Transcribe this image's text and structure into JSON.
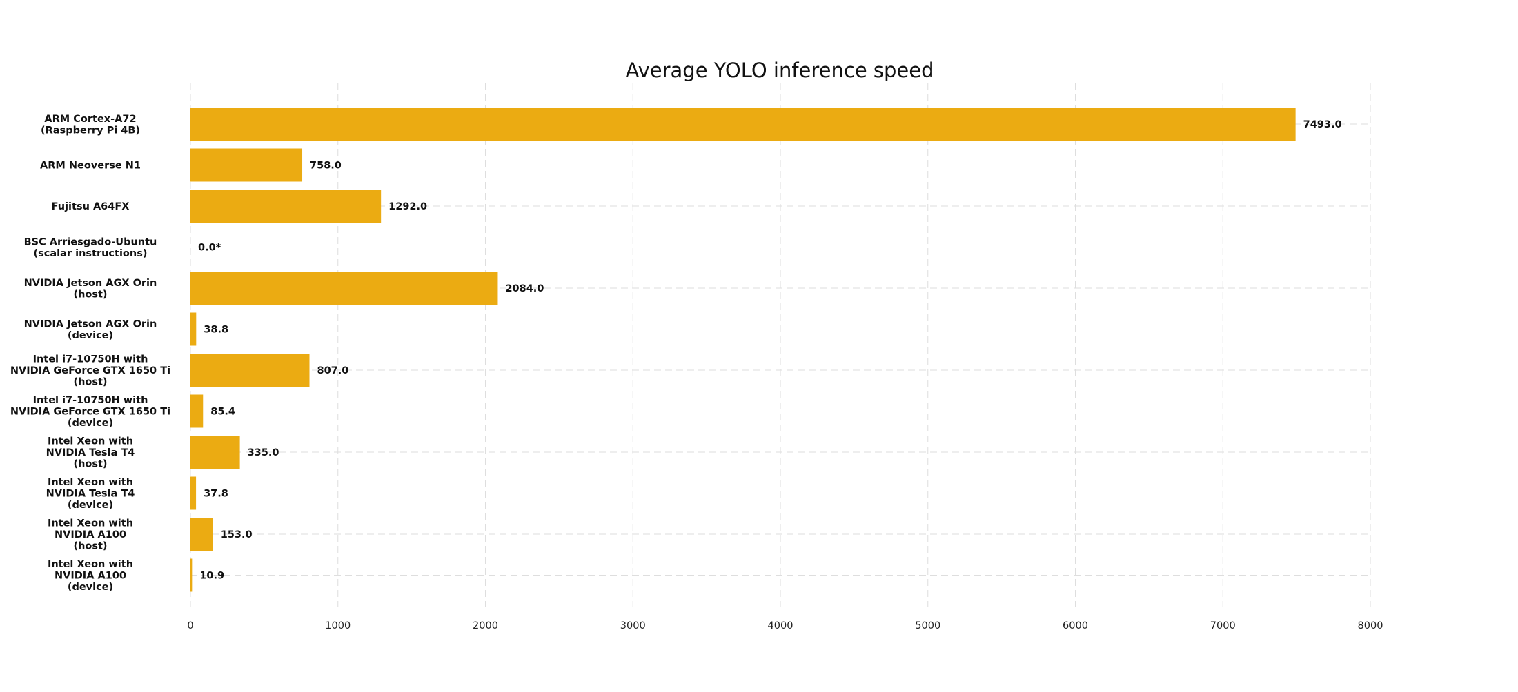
{
  "chart_data": {
    "type": "bar",
    "orientation": "horizontal",
    "title": "Average YOLO inference speed",
    "xlabel": "",
    "ylabel": "",
    "xlim": [
      0,
      8000
    ],
    "x_ticks": [
      0,
      1000,
      2000,
      3000,
      4000,
      5000,
      6000,
      7000,
      8000
    ],
    "grid": true,
    "legend": "none",
    "bar_color": "#ebab12",
    "categories": [
      [
        "ARM Cortex-A72",
        "(Raspberry Pi 4B)"
      ],
      [
        "ARM Neoverse N1"
      ],
      [
        "Fujitsu A64FX"
      ],
      [
        "BSC Arriesgado-Ubuntu",
        "(scalar instructions)"
      ],
      [
        "NVIDIA Jetson AGX Orin",
        "(host)"
      ],
      [
        "NVIDIA Jetson AGX Orin",
        "(device)"
      ],
      [
        "Intel i7-10750H with",
        "NVIDIA GeForce GTX 1650 Ti",
        "(host)"
      ],
      [
        "Intel i7-10750H with",
        "NVIDIA GeForce GTX 1650 Ti",
        "(device)"
      ],
      [
        "Intel Xeon with",
        "NVIDIA Tesla T4",
        "(host)"
      ],
      [
        "Intel Xeon with",
        "NVIDIA Tesla T4",
        "(device)"
      ],
      [
        "Intel Xeon with",
        "NVIDIA A100",
        "(host)"
      ],
      [
        "Intel Xeon with",
        "NVIDIA A100",
        "(device)"
      ]
    ],
    "values": [
      7493.0,
      758.0,
      1292.0,
      0.0,
      2084.0,
      38.8,
      807.0,
      85.4,
      335.0,
      37.8,
      153.0,
      10.9
    ],
    "value_labels": [
      "7493.0",
      "758.0",
      "1292.0",
      "0.0*",
      "2084.0",
      "38.8",
      "807.0",
      "85.4",
      "335.0",
      "37.8",
      "153.0",
      "10.9"
    ]
  }
}
